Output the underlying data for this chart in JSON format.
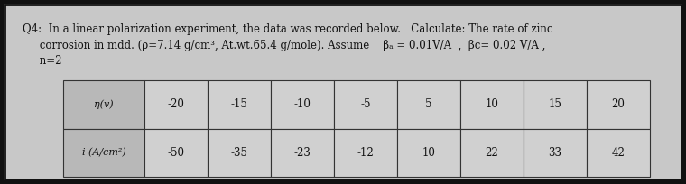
{
  "line1": "Q4:  In a linear polarization experiment, the data was recorded below.   Calculate: The rate of zinc",
  "line2": "     corrosion in mdd. (ρ=7.14 g/cm³, At.wt.65.4 g/mole). Assume    βₐ = 0.01V/A  ,  βc= 0.02 V/A ,",
  "line3": "     n=2",
  "row1_label": "η(v)",
  "row2_label": "i (A/cm²)",
  "eta_values": [
    "-20",
    "-15",
    "-10",
    "-5",
    "5",
    "10",
    "15",
    "20"
  ],
  "i_values": [
    "-50",
    "-35",
    "-23",
    "-12",
    "10",
    "22",
    "33",
    "42"
  ],
  "bg_color": "#c8c8c8",
  "cell_bg": "#d0d0d0",
  "label_cell_bg": "#b8b8b8",
  "text_color": "#111111",
  "border_color": "#333333",
  "frame_color": "#111111"
}
